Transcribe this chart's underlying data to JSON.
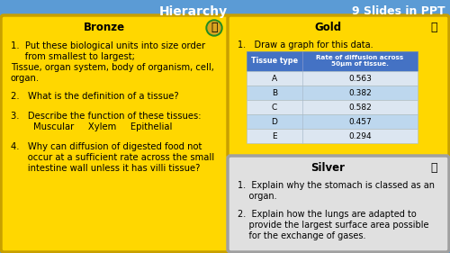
{
  "title": "Hierarchy",
  "title_right": "9 Slides in PPT",
  "bg_color": "#5B9BD5",
  "bronze_title": "Bronze",
  "bronze_bg": "#FFD700",
  "bronze_border": "#C8A000",
  "gold_title": "Gold",
  "gold_bg": "#FFD700",
  "gold_border": "#C8A000",
  "gold_text": "1.   Draw a graph for this data.",
  "table_header": [
    "Tissue type",
    "Rate of diffusion across\n50μm of tissue."
  ],
  "table_rows": [
    [
      "A",
      "0.563"
    ],
    [
      "B",
      "0.382"
    ],
    [
      "C",
      "0.582"
    ],
    [
      "D",
      "0.457"
    ],
    [
      "E",
      "0.294"
    ]
  ],
  "table_header_bg": "#4472C4",
  "table_header_fg": "#FFFFFF",
  "table_row_bg1": "#DCE6F1",
  "table_row_bg2": "#BDD7EE",
  "silver_title": "Silver",
  "silver_bg": "#E0E0E0",
  "silver_border": "#A0A0A0"
}
